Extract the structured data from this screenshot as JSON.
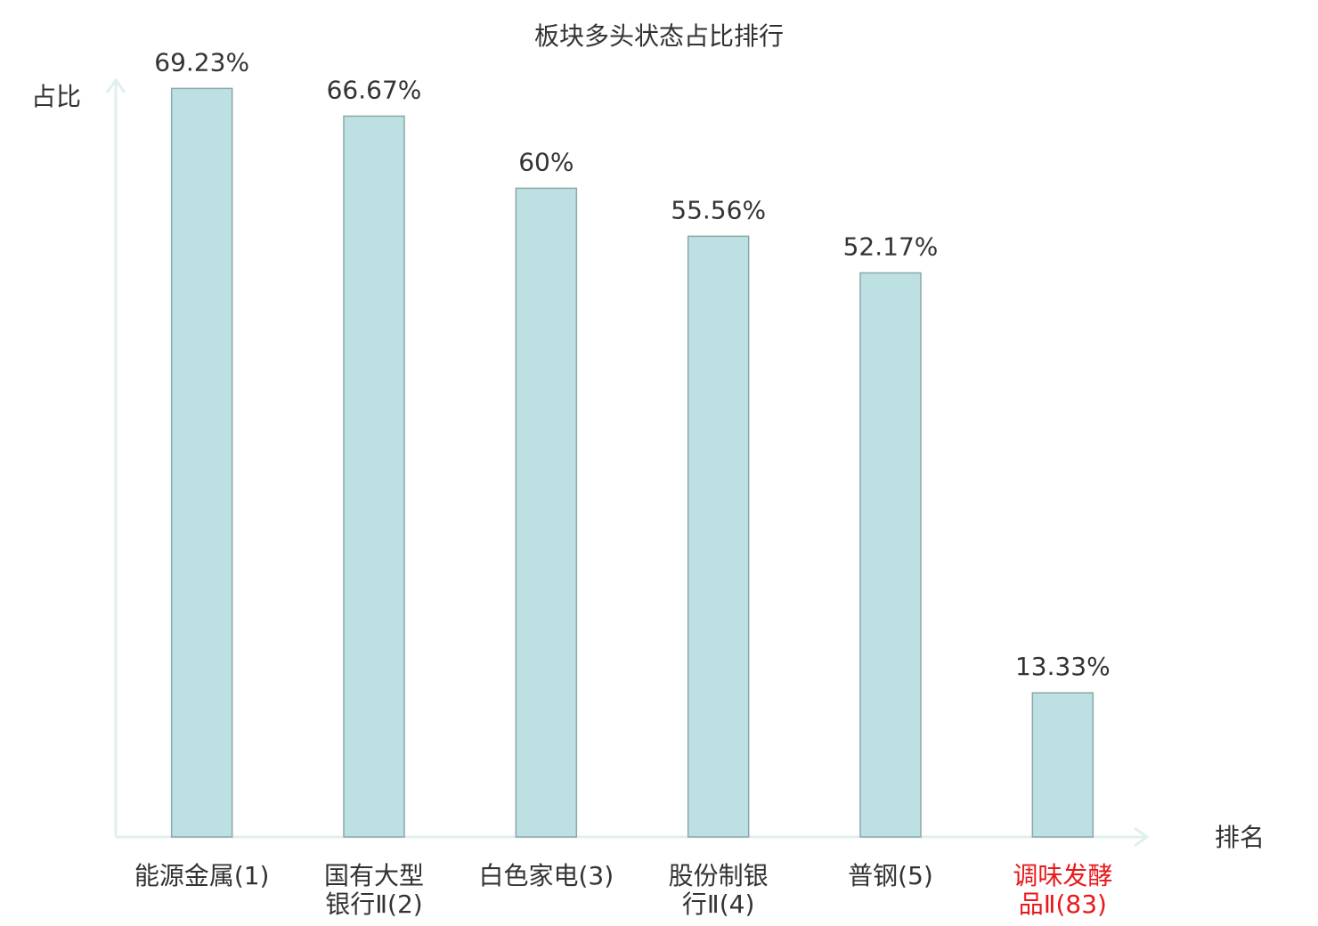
{
  "chart_data": {
    "type": "bar",
    "title": "板块多头状态占比排行",
    "y_label": "占比",
    "x_label": "排名",
    "categories": [
      "能源金属(1)",
      "国有大型\n银行Ⅱ(2)",
      "白色家电(3)",
      "股份制银\n行Ⅱ(4)",
      "普钢(5)",
      "调味发酵\n品Ⅱ(83)"
    ],
    "values": [
      69.23,
      66.67,
      60,
      55.56,
      52.17,
      13.33
    ],
    "value_labels": [
      "69.23%",
      "66.67%",
      "60%",
      "55.56%",
      "52.17%",
      "13.33%"
    ],
    "color": "#bde1e3",
    "edge_color": "#8aa8a8",
    "highlight_category": 5,
    "highlight_color": "#e8191b",
    "ylim": [
      0,
      70
    ]
  }
}
